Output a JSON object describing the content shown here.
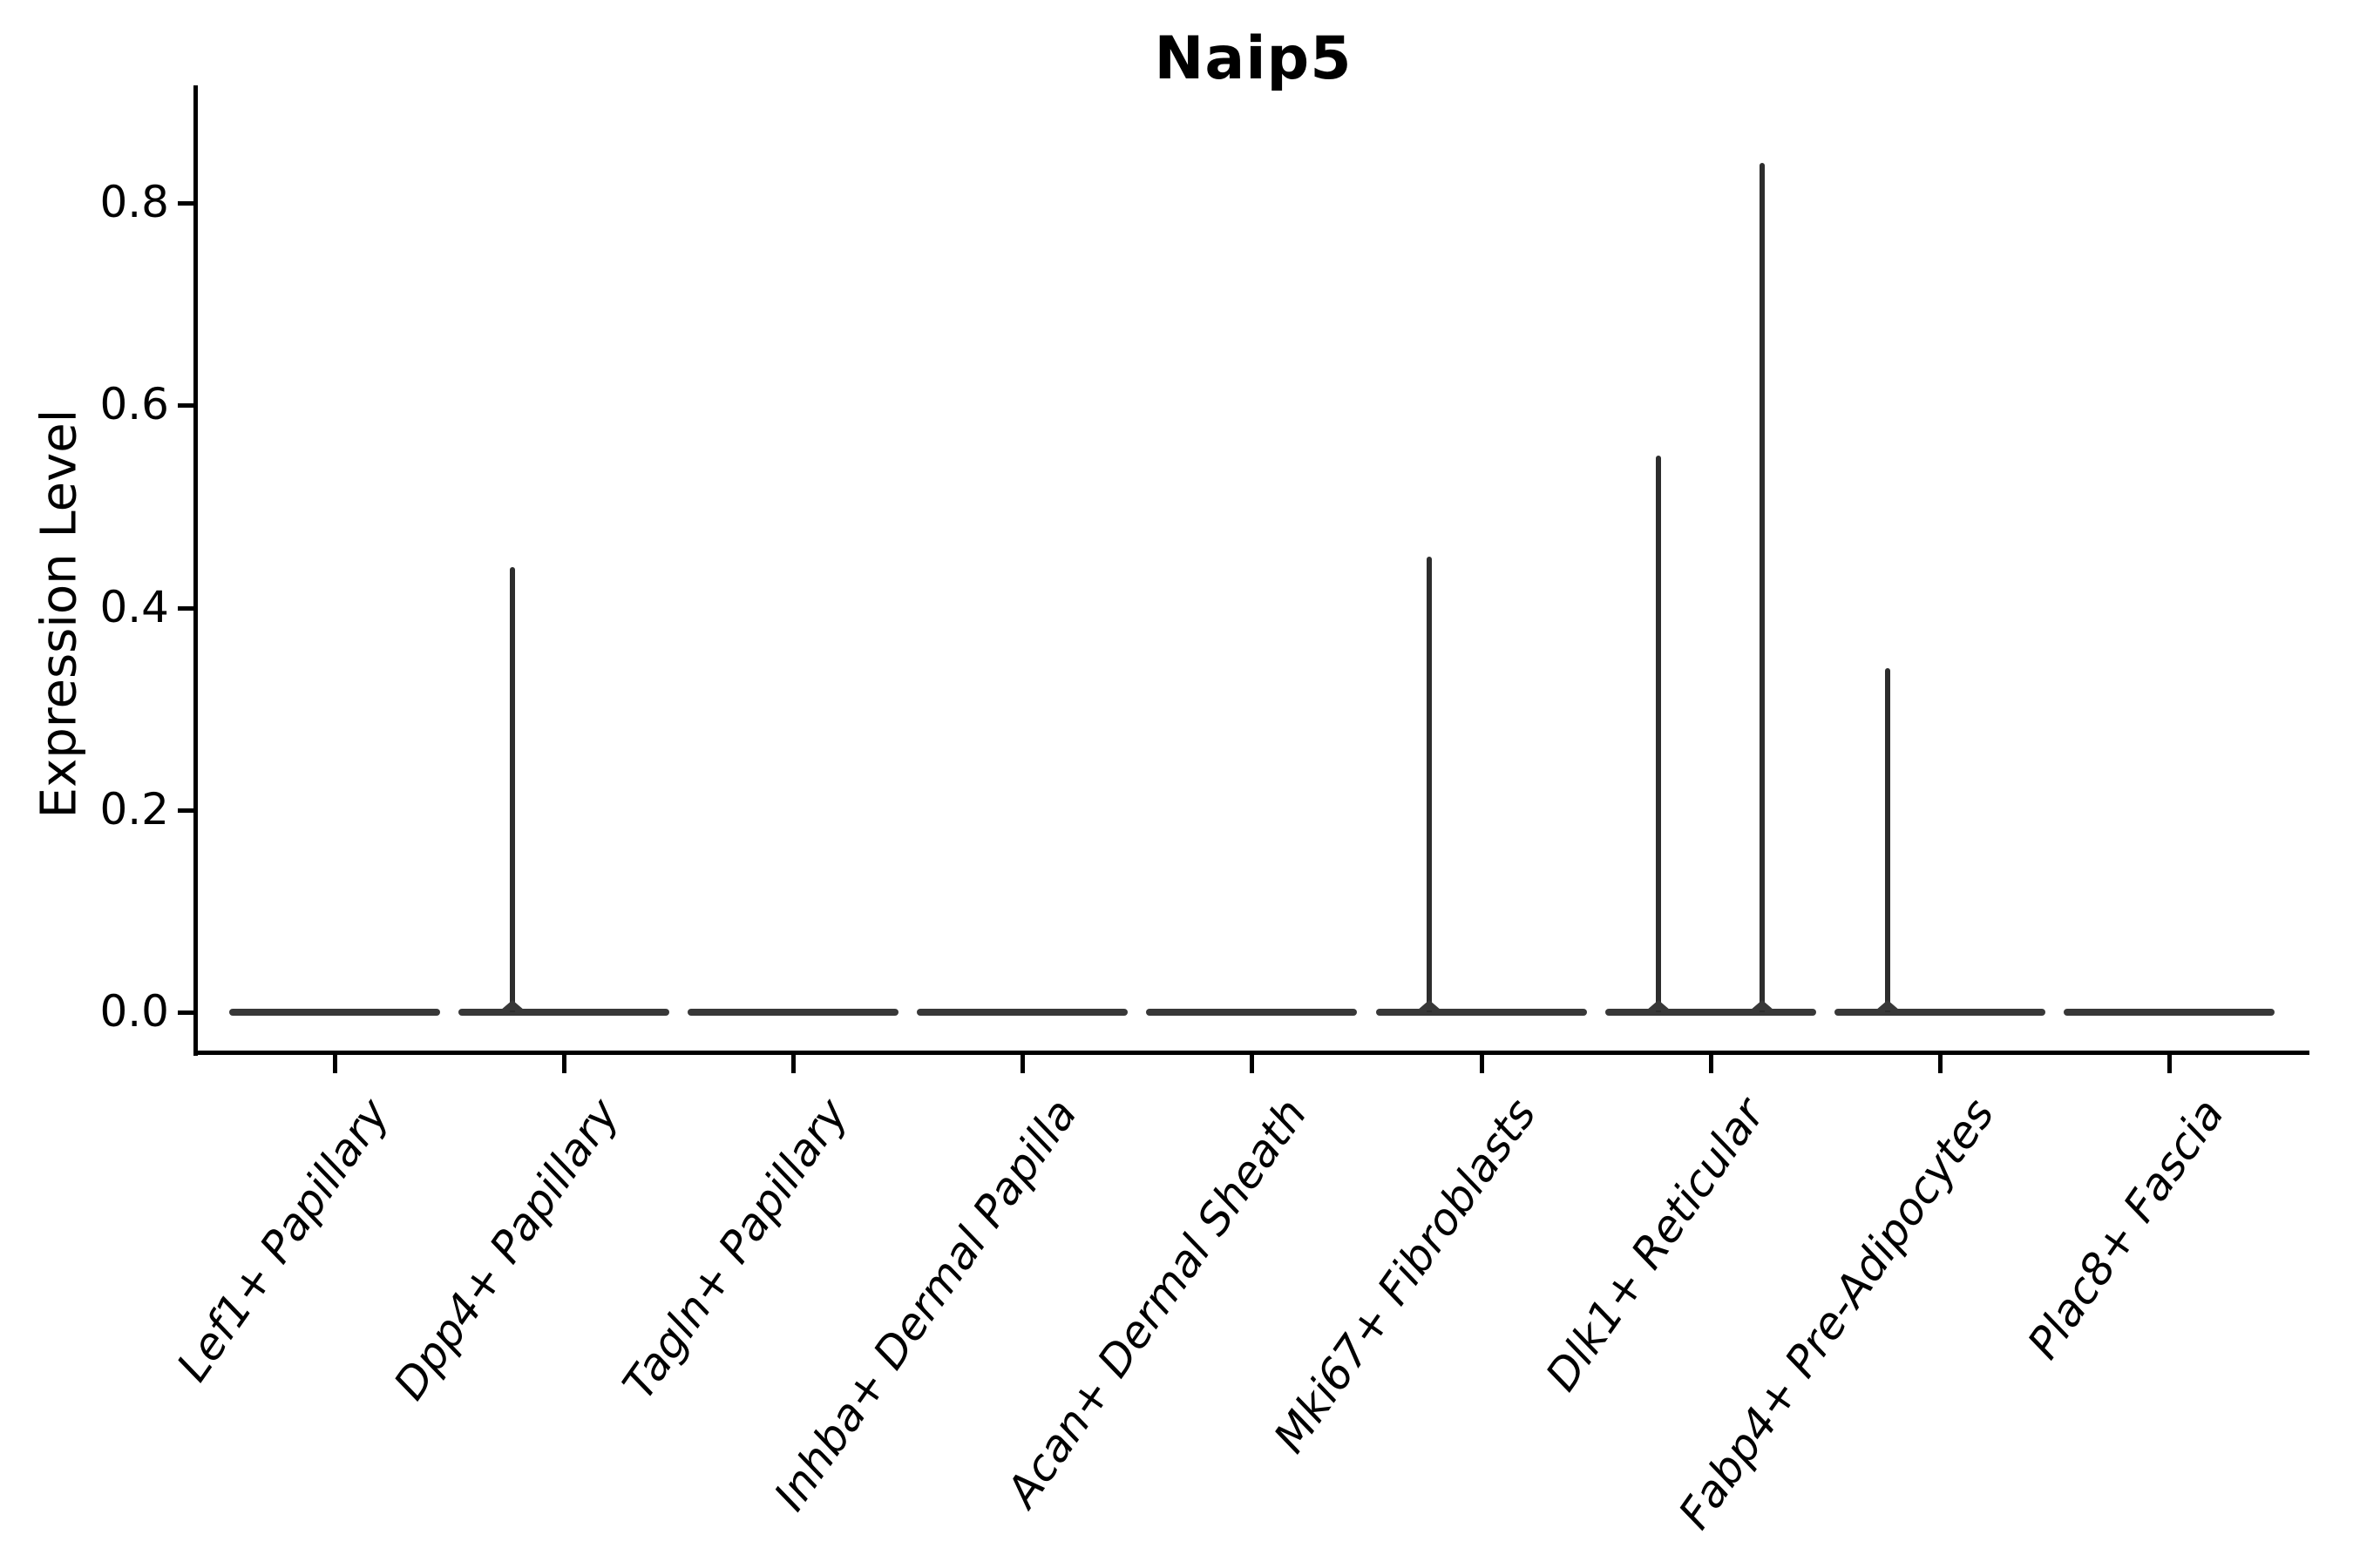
{
  "chart_data": {
    "type": "violin",
    "title": "Naip5",
    "ylabel": "Expression Level",
    "xlabel": "",
    "yticks": [
      0.0,
      0.2,
      0.4,
      0.6,
      0.8
    ],
    "ytick_labels": [
      "0.0",
      "0.2",
      "0.4",
      "0.6",
      "0.8"
    ],
    "ylim": [
      0,
      0.9
    ],
    "grid": false,
    "legend": false,
    "categories": [
      "Lef1+ Papillary",
      "Dpp4+ Papillary",
      "Tagln+ Papillary",
      "Inhba+ Dermal Papilla",
      "Acan+ Dermal Sheath",
      "Mki67+ Fibroblasts",
      "Dlk1+ Reticular",
      "Fabp4+ Pre-Adipocytes",
      "Plac8+ Fascia"
    ],
    "violins": [
      {
        "category": "Lef1+ Papillary",
        "baseline": 0.0,
        "spikes": []
      },
      {
        "category": "Dpp4+ Papillary",
        "baseline": 0.0,
        "spikes": [
          {
            "side": "left",
            "max": 0.44
          }
        ]
      },
      {
        "category": "Tagln+ Papillary",
        "baseline": 0.0,
        "spikes": []
      },
      {
        "category": "Inhba+ Dermal Papilla",
        "baseline": 0.0,
        "spikes": []
      },
      {
        "category": "Acan+ Dermal Sheath",
        "baseline": 0.0,
        "spikes": []
      },
      {
        "category": "Mki67+ Fibroblasts",
        "baseline": 0.0,
        "spikes": [
          {
            "side": "left",
            "max": 0.45
          }
        ]
      },
      {
        "category": "Dlk1+ Reticular",
        "baseline": 0.0,
        "spikes": [
          {
            "side": "left",
            "max": 0.55
          },
          {
            "side": "right",
            "max": 0.84
          }
        ]
      },
      {
        "category": "Fabp4+ Pre-Adipocytes",
        "baseline": 0.0,
        "spikes": [
          {
            "side": "left",
            "max": 0.34
          }
        ]
      },
      {
        "category": "Plac8+ Fascia",
        "baseline": 0.0,
        "spikes": []
      }
    ],
    "colors": {
      "line": "#2d2d2d",
      "violin": "#383838",
      "axis": "#000000",
      "text": "#000000"
    }
  }
}
